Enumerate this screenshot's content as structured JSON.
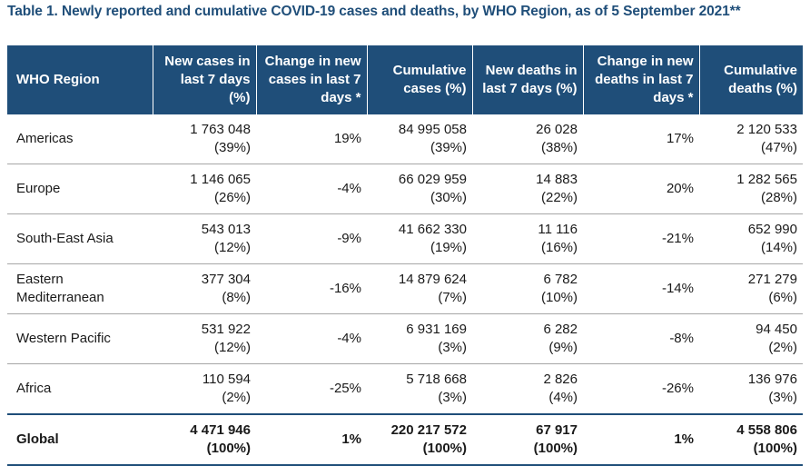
{
  "caption": "Table 1. Newly reported and cumulative COVID-19 cases and deaths, by WHO Region, as of 5 September 2021**",
  "headers": [
    "WHO Region",
    "New cases in last 7 days (%)",
    "Change in new cases in last 7 days *",
    "Cumulative cases (%)",
    "New deaths in last 7 days (%)",
    "Change in new deaths in last 7 days *",
    "Cumulative deaths (%)"
  ],
  "rows": [
    {
      "region": "Americas",
      "new_cases": "1 763 048",
      "new_cases_pct": "(39%)",
      "change_cases": "19%",
      "cum_cases": "84 995 058",
      "cum_cases_pct": "(39%)",
      "new_deaths": "26 028",
      "new_deaths_pct": "(38%)",
      "change_deaths": "17%",
      "cum_deaths": "2 120 533",
      "cum_deaths_pct": "(47%)"
    },
    {
      "region": "Europe",
      "new_cases": "1 146 065",
      "new_cases_pct": "(26%)",
      "change_cases": "-4%",
      "cum_cases": "66 029 959",
      "cum_cases_pct": "(30%)",
      "new_deaths": "14 883",
      "new_deaths_pct": "(22%)",
      "change_deaths": "20%",
      "cum_deaths": "1 282 565",
      "cum_deaths_pct": "(28%)"
    },
    {
      "region": "South-East Asia",
      "new_cases": "543 013",
      "new_cases_pct": "(12%)",
      "change_cases": "-9%",
      "cum_cases": "41 662 330",
      "cum_cases_pct": "(19%)",
      "new_deaths": "11 116",
      "new_deaths_pct": "(16%)",
      "change_deaths": "-21%",
      "cum_deaths": "652 990",
      "cum_deaths_pct": "(14%)"
    },
    {
      "region": "Eastern Mediterranean",
      "new_cases": "377 304",
      "new_cases_pct": "(8%)",
      "change_cases": "-16%",
      "cum_cases": "14 879 624",
      "cum_cases_pct": "(7%)",
      "new_deaths": "6 782",
      "new_deaths_pct": "(10%)",
      "change_deaths": "-14%",
      "cum_deaths": "271 279",
      "cum_deaths_pct": "(6%)"
    },
    {
      "region": "Western Pacific",
      "new_cases": "531 922",
      "new_cases_pct": "(12%)",
      "change_cases": "-4%",
      "cum_cases": "6 931 169",
      "cum_cases_pct": "(3%)",
      "new_deaths": "6 282",
      "new_deaths_pct": "(9%)",
      "change_deaths": "-8%",
      "cum_deaths": "94 450",
      "cum_deaths_pct": "(2%)"
    },
    {
      "region": "Africa",
      "new_cases": "110 594",
      "new_cases_pct": "(2%)",
      "change_cases": "-25%",
      "cum_cases": "5 718 668",
      "cum_cases_pct": "(3%)",
      "new_deaths": "2 826",
      "new_deaths_pct": "(4%)",
      "change_deaths": "-26%",
      "cum_deaths": "136 976",
      "cum_deaths_pct": "(3%)"
    }
  ],
  "global": {
    "region": "Global",
    "new_cases": "4 471 946",
    "new_cases_pct": "(100%)",
    "change_cases": "1%",
    "cum_cases": "220 217 572",
    "cum_cases_pct": "(100%)",
    "new_deaths": "67 917",
    "new_deaths_pct": "(100%)",
    "change_deaths": "1%",
    "cum_deaths": "4 558 806",
    "cum_deaths_pct": "(100%)"
  },
  "colors": {
    "header_bg": "#1f4e79",
    "caption": "#1f4e79"
  }
}
